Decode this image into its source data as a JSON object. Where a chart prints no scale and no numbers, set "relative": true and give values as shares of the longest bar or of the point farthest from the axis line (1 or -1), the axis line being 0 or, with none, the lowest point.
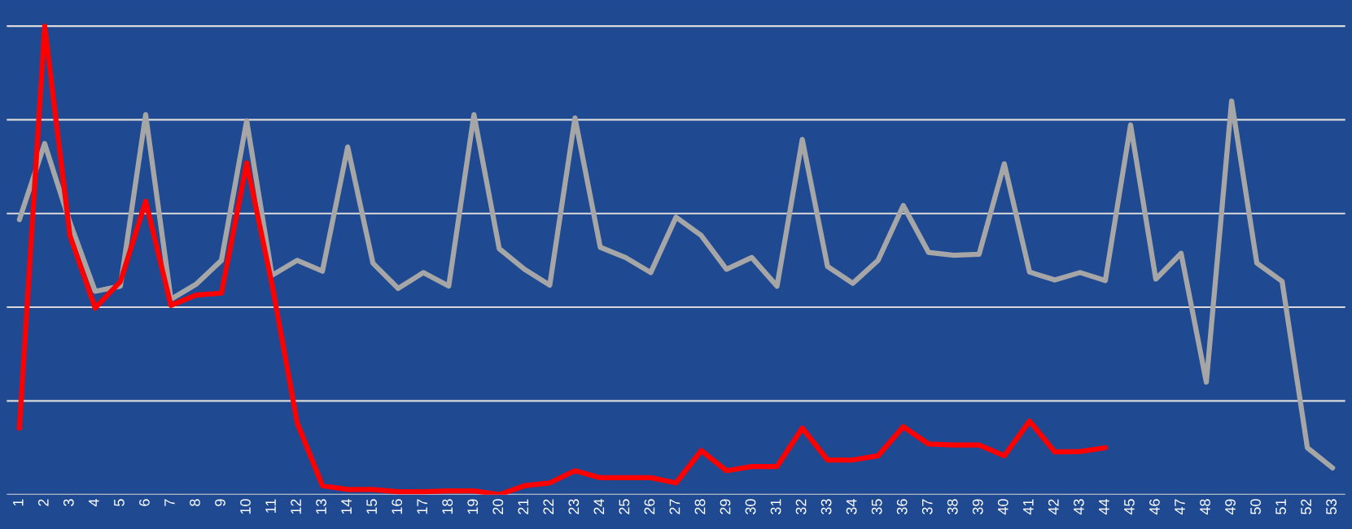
{
  "chart_data": {
    "type": "line",
    "relative": true,
    "categories": [
      "1",
      "2",
      "3",
      "4",
      "5",
      "6",
      "7",
      "8",
      "9",
      "10",
      "11",
      "12",
      "13",
      "14",
      "15",
      "16",
      "17",
      "18",
      "19",
      "20",
      "21",
      "22",
      "23",
      "24",
      "25",
      "26",
      "27",
      "28",
      "29",
      "30",
      "31",
      "32",
      "33",
      "34",
      "35",
      "36",
      "37",
      "38",
      "39",
      "40",
      "41",
      "42",
      "43",
      "44",
      "45",
      "46",
      "47",
      "48",
      "49",
      "50",
      "51",
      "52",
      "53"
    ],
    "series": [
      {
        "color": "#a6a6a6",
        "values": [
          0.587,
          0.749,
          0.581,
          0.434,
          0.445,
          0.811,
          0.417,
          0.449,
          0.5,
          0.798,
          0.468,
          0.5,
          0.477,
          0.742,
          0.494,
          0.44,
          0.474,
          0.445,
          0.811,
          0.525,
          0.481,
          0.447,
          0.804,
          0.528,
          0.506,
          0.474,
          0.592,
          0.553,
          0.481,
          0.506,
          0.445,
          0.758,
          0.487,
          0.451,
          0.5,
          0.617,
          0.517,
          0.511,
          0.513,
          0.706,
          0.475,
          0.458,
          0.474,
          0.457,
          0.789,
          0.46,
          0.515,
          0.24,
          0.84,
          0.494,
          0.455,
          0.1,
          0.057
        ]
      },
      {
        "color": "#ff0000",
        "values": [
          0.142,
          1.0,
          0.553,
          0.398,
          0.455,
          0.626,
          0.404,
          0.426,
          0.43,
          0.708,
          0.449,
          0.153,
          0.019,
          0.011,
          0.011,
          0.006,
          0.006,
          0.008,
          0.008,
          0.0,
          0.019,
          0.025,
          0.051,
          0.036,
          0.036,
          0.036,
          0.025,
          0.094,
          0.051,
          0.06,
          0.06,
          0.142,
          0.074,
          0.074,
          0.083,
          0.145,
          0.108,
          0.106,
          0.106,
          0.083,
          0.157,
          0.091,
          0.092,
          0.1,
          null,
          null,
          null,
          null,
          null,
          null,
          null,
          null,
          null
        ]
      }
    ],
    "grid": "y",
    "tick_labels": "x",
    "marker": "none",
    "line_style": "solid",
    "legend": false
  }
}
